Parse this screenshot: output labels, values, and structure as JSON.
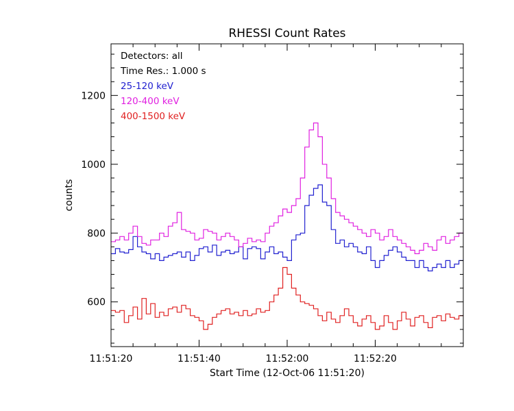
{
  "chart_data": {
    "type": "line",
    "title": "RHESSI Count Rates",
    "xlabel": "Start Time (12-Oct-06 11:51:20)",
    "ylabel": "counts",
    "x_unit": "seconds after 11:51:20",
    "xlim": [
      0,
      80
    ],
    "ylim": [
      470,
      1350
    ],
    "x_tick_values": [
      0,
      20,
      40,
      60
    ],
    "x_tick_labels": [
      "11:51:20",
      "11:51:40",
      "11:52:00",
      "11:52:20"
    ],
    "y_tick_values": [
      600,
      800,
      1000,
      1200
    ],
    "y_tick_labels": [
      "600",
      "800",
      "1000",
      "1200"
    ],
    "grid": false,
    "legend_placement": "top-left",
    "annotations": [
      "Detectors: all",
      "Time Res.: 1.000 s"
    ],
    "series": [
      {
        "name": "25-120 keV",
        "color": "#2020d0",
        "values": [
          740,
          755,
          745,
          742,
          752,
          790,
          760,
          745,
          740,
          725,
          740,
          720,
          730,
          735,
          740,
          745,
          730,
          745,
          720,
          735,
          755,
          760,
          745,
          765,
          735,
          745,
          750,
          740,
          745,
          760,
          725,
          755,
          760,
          755,
          725,
          745,
          760,
          740,
          745,
          730,
          720,
          780,
          795,
          800,
          880,
          910,
          930,
          940,
          890,
          880,
          810,
          770,
          780,
          760,
          770,
          760,
          745,
          740,
          760,
          720,
          700,
          720,
          735,
          750,
          760,
          745,
          730,
          720,
          720,
          700,
          720,
          700,
          690,
          700,
          710,
          700,
          720,
          700,
          710,
          720
        ]
      },
      {
        "name": "120-400 keV",
        "color": "#e020e0",
        "values": [
          775,
          780,
          790,
          780,
          800,
          820,
          790,
          770,
          765,
          780,
          780,
          800,
          790,
          820,
          830,
          860,
          810,
          805,
          800,
          780,
          785,
          810,
          805,
          800,
          780,
          790,
          800,
          790,
          780,
          760,
          770,
          785,
          775,
          780,
          775,
          800,
          820,
          830,
          850,
          870,
          860,
          880,
          900,
          960,
          1050,
          1100,
          1120,
          1080,
          1000,
          960,
          900,
          860,
          850,
          840,
          830,
          820,
          810,
          800,
          790,
          810,
          800,
          780,
          790,
          810,
          790,
          780,
          770,
          760,
          750,
          740,
          750,
          770,
          760,
          750,
          780,
          790,
          770,
          780,
          790,
          800
        ]
      },
      {
        "name": "400-1500 keV",
        "color": "#e02020",
        "values": [
          575,
          570,
          575,
          540,
          560,
          585,
          550,
          610,
          565,
          595,
          555,
          570,
          560,
          580,
          585,
          570,
          590,
          580,
          560,
          555,
          545,
          520,
          535,
          555,
          565,
          575,
          580,
          565,
          570,
          560,
          575,
          560,
          565,
          580,
          570,
          575,
          600,
          620,
          640,
          700,
          680,
          640,
          620,
          600,
          595,
          590,
          580,
          560,
          545,
          570,
          550,
          540,
          560,
          580,
          560,
          540,
          530,
          550,
          560,
          540,
          520,
          530,
          560,
          540,
          520,
          545,
          570,
          550,
          530,
          555,
          560,
          540,
          525,
          555,
          560,
          545,
          565,
          555,
          550,
          560
        ]
      }
    ]
  }
}
